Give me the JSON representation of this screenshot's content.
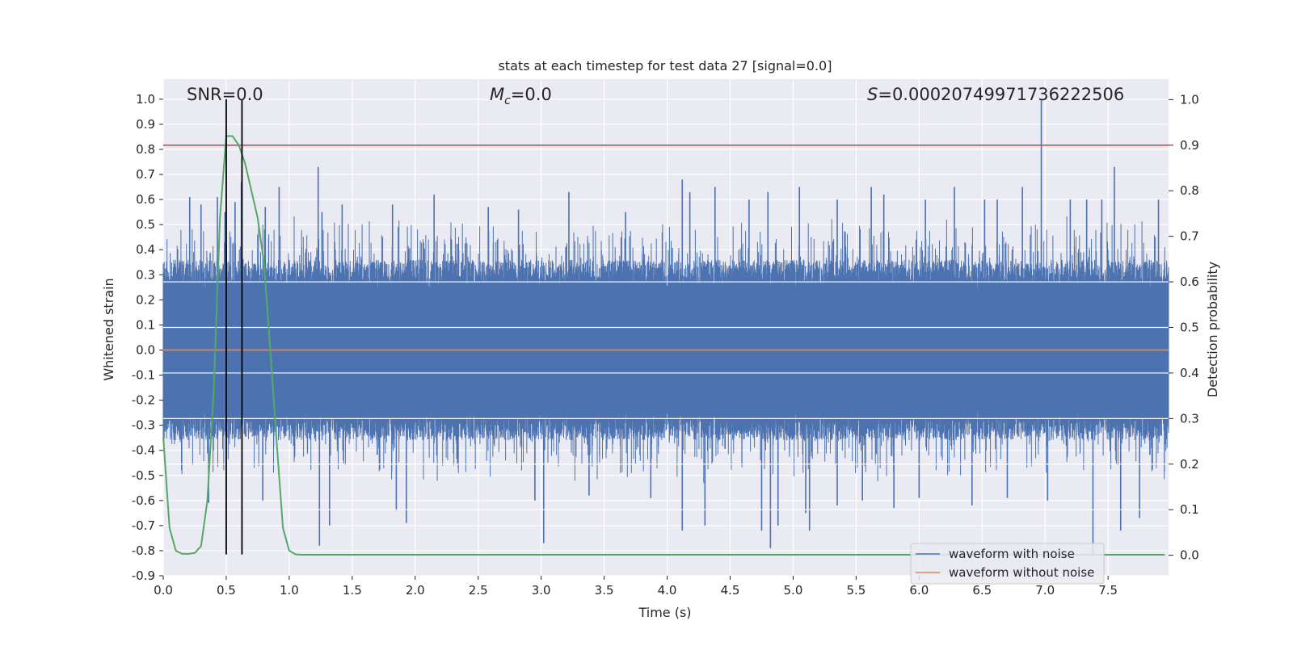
{
  "chart_data": {
    "type": "line",
    "title": "stats at each timestep for test data 27 [signal=0.0]",
    "xlabel": "Time (s)",
    "ylabel": "Whitened strain",
    "y2label": "Detection probability",
    "xlim": [
      0.0,
      7.98
    ],
    "ylim": [
      -0.9,
      1.08
    ],
    "y2lim": [
      -0.045,
      1.045
    ],
    "xticks": [
      "0.0",
      "0.5",
      "1.0",
      "1.5",
      "2.0",
      "2.5",
      "3.0",
      "3.5",
      "4.0",
      "4.5",
      "5.0",
      "5.5",
      "6.0",
      "6.5",
      "7.0",
      "7.5"
    ],
    "yticks": [
      "1.0",
      "0.9",
      "0.8",
      "0.7",
      "0.6",
      "0.5",
      "0.4",
      "0.3",
      "0.2",
      "0.1",
      "0.0",
      "-0.1",
      "-0.2",
      "-0.3",
      "-0.4",
      "-0.5",
      "-0.6",
      "-0.7",
      "-0.8",
      "-0.9"
    ],
    "y2ticks": [
      "1.0",
      "0.9",
      "0.8",
      "0.7",
      "0.6",
      "0.5",
      "0.4",
      "0.3",
      "0.2",
      "0.1",
      "0.0"
    ],
    "grid": true,
    "legend_position": "lower-right",
    "annotations": {
      "snr_label": "SNR=0.0",
      "mc_symbol": "M",
      "mc_subscript": "c",
      "mc_value": "=0.0",
      "s_symbol": "S",
      "s_value": "=0.00020749971736222506"
    },
    "series": [
      {
        "name": "waveform with noise",
        "color": "#4c72b0",
        "description": "dense whitened strain noise, typical envelope ±0.4, peak 1.0 near t=6.97",
        "spikes_up": [
          [
            0.21,
            0.61
          ],
          [
            0.3,
            0.58
          ],
          [
            0.43,
            0.61
          ],
          [
            0.49,
            0.55
          ],
          [
            0.57,
            0.59
          ],
          [
            0.62,
            0.67
          ],
          [
            0.81,
            0.57
          ],
          [
            0.92,
            0.65
          ],
          [
            1.23,
            0.73
          ],
          [
            1.26,
            0.55
          ],
          [
            1.42,
            0.58
          ],
          [
            1.82,
            0.58
          ],
          [
            2.15,
            0.62
          ],
          [
            2.58,
            0.57
          ],
          [
            2.82,
            0.56
          ],
          [
            3.22,
            0.63
          ],
          [
            3.67,
            0.55
          ],
          [
            4.12,
            0.68
          ],
          [
            4.18,
            0.63
          ],
          [
            4.38,
            0.65
          ],
          [
            4.65,
            0.6
          ],
          [
            4.8,
            0.63
          ],
          [
            5.05,
            0.65
          ],
          [
            5.35,
            0.6
          ],
          [
            5.62,
            0.65
          ],
          [
            5.72,
            0.62
          ],
          [
            6.05,
            0.6
          ],
          [
            6.28,
            0.65
          ],
          [
            6.52,
            0.6
          ],
          [
            6.62,
            0.6
          ],
          [
            6.82,
            0.65
          ],
          [
            6.97,
            1.0
          ],
          [
            7.2,
            0.6
          ],
          [
            7.33,
            0.6
          ],
          [
            7.45,
            0.6
          ],
          [
            7.55,
            0.73
          ],
          [
            7.9,
            0.6
          ]
        ],
        "spikes_down": [
          [
            0.36,
            -0.61
          ],
          [
            0.79,
            -0.6
          ],
          [
            1.24,
            -0.78
          ],
          [
            1.32,
            -0.7
          ],
          [
            1.85,
            -0.64
          ],
          [
            1.93,
            -0.69
          ],
          [
            2.95,
            -0.6
          ],
          [
            3.02,
            -0.77
          ],
          [
            3.38,
            -0.58
          ],
          [
            3.87,
            -0.59
          ],
          [
            4.12,
            -0.72
          ],
          [
            4.3,
            -0.7
          ],
          [
            4.75,
            -0.72
          ],
          [
            4.82,
            -0.79
          ],
          [
            4.88,
            -0.7
          ],
          [
            5.1,
            -0.65
          ],
          [
            5.13,
            -0.72
          ],
          [
            5.35,
            -0.62
          ],
          [
            5.55,
            -0.6
          ],
          [
            5.8,
            -0.63
          ],
          [
            6.0,
            -0.59
          ],
          [
            6.42,
            -0.62
          ],
          [
            6.7,
            -0.59
          ],
          [
            7.02,
            -0.6
          ],
          [
            7.38,
            -0.82
          ],
          [
            7.6,
            -0.72
          ],
          [
            7.75,
            -0.67
          ]
        ]
      },
      {
        "name": "waveform without noise",
        "color": "#dd8452",
        "x": [
          0.0,
          7.98
        ],
        "y": [
          0.0,
          0.0
        ]
      },
      {
        "name": "",
        "axis": "right",
        "color": "#55a868",
        "x": [
          0.0,
          0.05,
          0.1,
          0.15,
          0.2,
          0.25,
          0.3,
          0.35,
          0.4,
          0.45,
          0.5,
          0.55,
          0.6,
          0.65,
          0.7,
          0.75,
          0.8,
          0.85,
          0.9,
          0.95,
          1.0,
          1.05,
          1.1,
          1.15,
          1.3,
          2.0,
          3.0,
          4.0,
          5.0,
          6.0,
          7.0,
          7.95
        ],
        "y": [
          0.26,
          0.06,
          0.01,
          0.003,
          0.003,
          0.005,
          0.02,
          0.12,
          0.36,
          0.74,
          0.92,
          0.92,
          0.9,
          0.86,
          0.8,
          0.74,
          0.64,
          0.45,
          0.25,
          0.06,
          0.01,
          0.002,
          0.001,
          0.001,
          0.001,
          0.001,
          0.001,
          0.001,
          0.001,
          0.001,
          0.001,
          0.001
        ]
      }
    ],
    "threshold": {
      "axis": "right",
      "value": 0.9,
      "color": "#c44e52"
    },
    "vlines": [
      0.5,
      0.625
    ]
  }
}
